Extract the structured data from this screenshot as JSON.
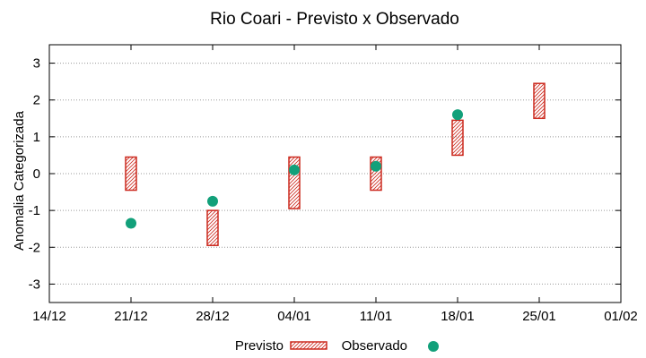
{
  "chart_data": {
    "type": "range-scatter",
    "title": "Rio Coari - Previsto x Observado",
    "ylabel": "Anomalia Categorizada",
    "xlabel": "",
    "ylim": [
      -3.5,
      3.5
    ],
    "y_ticks": [
      -3,
      -2,
      -1,
      0,
      1,
      2,
      3
    ],
    "x_ticks": [
      "14/12",
      "21/12",
      "28/12",
      "04/01",
      "11/01",
      "18/01",
      "25/01",
      "01/02"
    ],
    "grid": "horizontal-dotted",
    "legend": {
      "position": "bottom-center",
      "previsto_label": "Previsto",
      "observado_label": "Observado"
    },
    "colors": {
      "previsto": "#cc2a1f",
      "observado": "#12a07a",
      "grid": "#9a9a9a"
    },
    "series": [
      {
        "name": "Previsto",
        "kind": "interval",
        "points": [
          {
            "x": "21/12",
            "low": -0.45,
            "high": 0.45
          },
          {
            "x": "28/12",
            "low": -1.95,
            "high": -1.0
          },
          {
            "x": "04/01",
            "low": -0.95,
            "high": 0.45
          },
          {
            "x": "11/01",
            "low": -0.45,
            "high": 0.45
          },
          {
            "x": "18/01",
            "low": 0.5,
            "high": 1.45
          },
          {
            "x": "25/01",
            "low": 1.5,
            "high": 2.45
          }
        ]
      },
      {
        "name": "Observado",
        "kind": "point",
        "points": [
          {
            "x": "21/12",
            "y": -1.35
          },
          {
            "x": "28/12",
            "y": -0.75
          },
          {
            "x": "04/01",
            "y": 0.1
          },
          {
            "x": "11/01",
            "y": 0.2
          },
          {
            "x": "18/01",
            "y": 1.6
          }
        ]
      }
    ]
  }
}
